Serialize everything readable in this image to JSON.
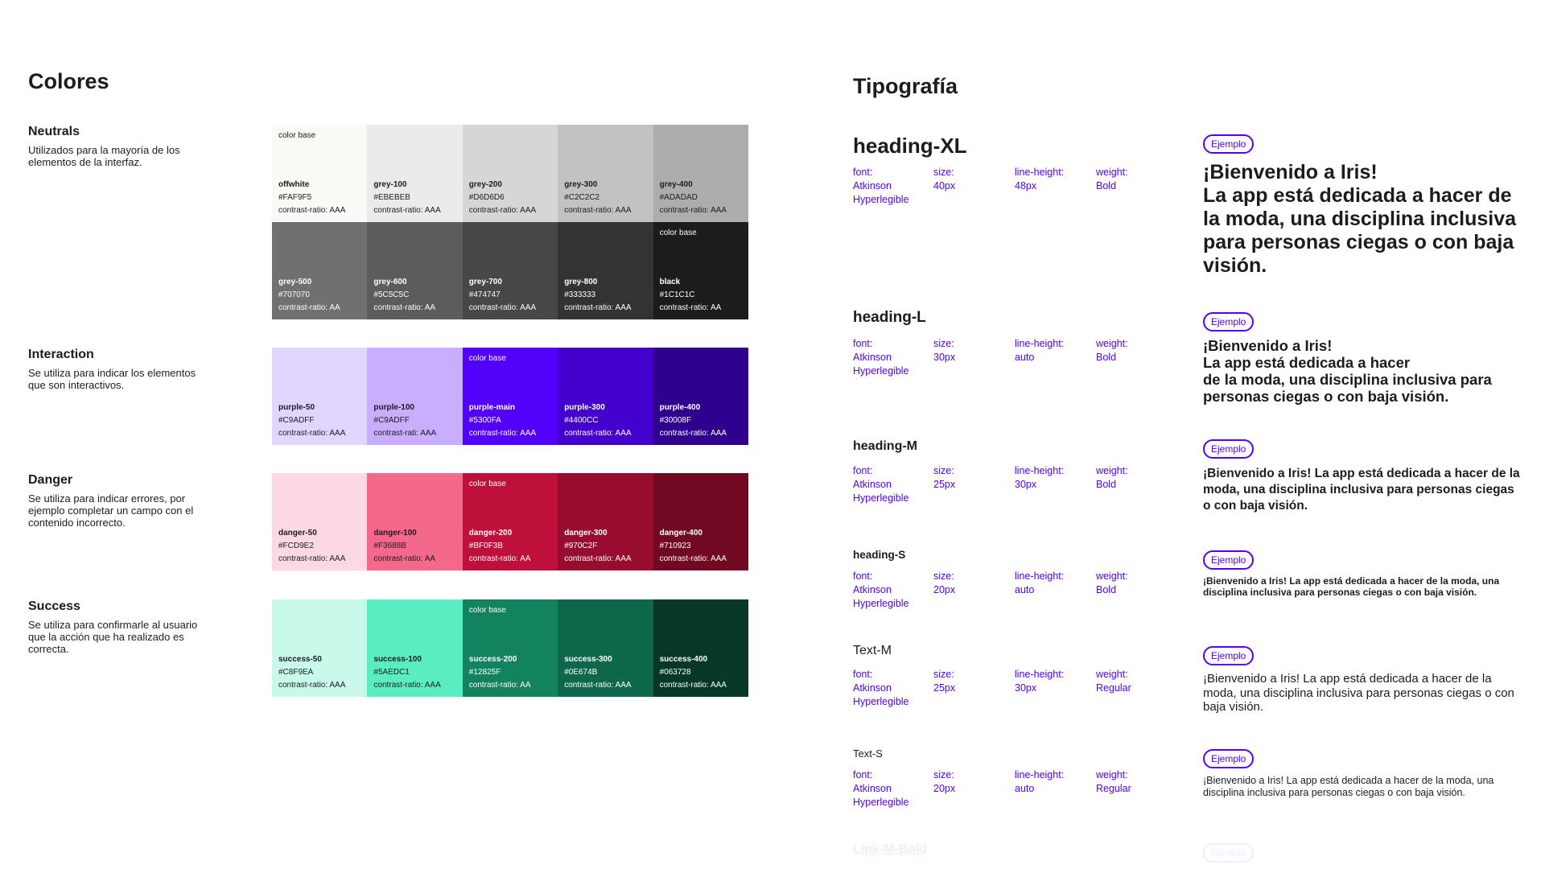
{
  "colors": {
    "title": "Colores",
    "sections": [
      {
        "title": "Neutrals",
        "desc": "Utilizados para la mayoría de los elementos de la interfaz.",
        "swatches": [
          {
            "name": "offwhite",
            "hex": "#FAF9F5",
            "contrast": "contrast-ratio: AAA",
            "base": "color base",
            "text": "#1c1c1c"
          },
          {
            "name": "grey-100",
            "hex": "#EBEBEB",
            "contrast": "contrast-ratio: AAA",
            "text": "#1c1c1c"
          },
          {
            "name": "grey-200",
            "hex": "#D6D6D6",
            "contrast": "contrast-ratio: AAA",
            "text": "#1c1c1c"
          },
          {
            "name": "grey-300",
            "hex": "#C2C2C2",
            "contrast": "contrast-ratio: AAA",
            "text": "#1c1c1c"
          },
          {
            "name": "grey-400",
            "hex": "#ADADAD",
            "contrast": "contrast-ratio: AAA",
            "text": "#1c1c1c"
          },
          {
            "name": "grey-500",
            "hex": "#707070",
            "contrast": "contrast-ratio: AA",
            "text": "#ffffff"
          },
          {
            "name": "grey-600",
            "hex": "#5C5C5C",
            "contrast": "contrast-ratio: AA",
            "text": "#ffffff"
          },
          {
            "name": "grey-700",
            "hex": "#474747",
            "contrast": "contrast-ratio: AAA",
            "text": "#ffffff"
          },
          {
            "name": "grey-800",
            "hex": "#333333",
            "contrast": "contrast-ratio: AAA",
            "text": "#ffffff"
          },
          {
            "name": "black",
            "hex": "#1C1C1C",
            "contrast": "contrast-ratio: AA",
            "base": "color base",
            "text": "#ffffff"
          }
        ]
      },
      {
        "title": "Interaction",
        "desc": "Se utiliza para indicar los elementos que son interactivos.",
        "swatches": [
          {
            "name": "purple-50",
            "hex": "#C9ADFF",
            "fill": "#E0D6FF",
            "contrast": "contrast-ratio: AAA",
            "text": "#1c1c1c"
          },
          {
            "name": "purple-100",
            "hex": "#C9ADFF",
            "contrast": "contrast-rati: AAA",
            "text": "#1c1c1c"
          },
          {
            "name": "purple-main",
            "hex": "#5300FA",
            "contrast": "contrast-ratio: AAA",
            "base": "color base",
            "text": "#ffffff"
          },
          {
            "name": "purple-300",
            "hex": "#4400CC",
            "contrast": "contrast-ratio: AAA",
            "text": "#ffffff"
          },
          {
            "name": "purple-400",
            "hex": "#30008F",
            "contrast": "contrast-ratio: AAA",
            "text": "#ffffff"
          }
        ]
      },
      {
        "title": "Danger",
        "desc": "Se utiliza para indicar errores, por ejemplo completar un campo con el contenido incorrecto.",
        "swatches": [
          {
            "name": "danger-50",
            "hex": "#FCD9E2",
            "contrast": "contrast-ratio: AAA",
            "text": "#1c1c1c"
          },
          {
            "name": "danger-100",
            "hex": "#F3688B",
            "contrast": "contrast-ratio: AA",
            "text": "#1c1c1c"
          },
          {
            "name": "danger-200",
            "hex": "#BF0F3B",
            "contrast": "contrast-ratio: AA",
            "base": "color base",
            "text": "#ffffff"
          },
          {
            "name": "danger-300",
            "hex": "#970C2F",
            "contrast": "contrast-ratio: AAA",
            "text": "#ffffff"
          },
          {
            "name": "danger-400",
            "hex": "#710923",
            "contrast": "contrast-ratio: AAA",
            "text": "#ffffff"
          }
        ]
      },
      {
        "title": "Success",
        "desc": "Se utiliza para confirmarle al usuario que la acción que ha realizado es correcta.",
        "swatches": [
          {
            "name": "success-50",
            "hex": "#C8F9EA",
            "contrast": "contrast-ratio: AAA",
            "text": "#1c1c1c"
          },
          {
            "name": "success-100",
            "hex": "#5AEDC1",
            "contrast": "contrast-ratio: AAA",
            "text": "#1c1c1c"
          },
          {
            "name": "success-200",
            "hex": "#12825F",
            "contrast": "contrast-ratio: AA",
            "base": "color base",
            "text": "#ffffff"
          },
          {
            "name": "success-300",
            "hex": "#0E674B",
            "contrast": "contrast-ratio: AAA",
            "text": "#ffffff"
          },
          {
            "name": "success-400",
            "hex": "#063728",
            "contrast": "contrast-ratio: AAA",
            "text": "#ffffff"
          }
        ]
      }
    ]
  },
  "typography": {
    "title": "Tipografía",
    "labels": {
      "font": "font:",
      "size": "size:",
      "line_height": "line-height:",
      "weight": "weight:",
      "badge": "Ejemplo"
    },
    "styles": [
      {
        "name": "heading-XL",
        "font": "Atkinson Hyperlegible",
        "size": "40px",
        "line_height": "48px",
        "weight": "Bold",
        "example": "¡Bienvenido a Iris!\nLa app está dedicada a hacer de la moda, una disciplina inclusiva para personas ciegas o con baja visión."
      },
      {
        "name": "heading-L",
        "font": "Atkinson Hyperlegible",
        "size": "30px",
        "line_height": "auto",
        "weight": "Bold",
        "example": "¡Bienvenido a Iris!\nLa app está dedicada a hacer\nde la moda, una disciplina inclusiva para personas ciegas o con baja visión."
      },
      {
        "name": "heading-M",
        "font": "Atkinson Hyperlegible",
        "size": "25px",
        "line_height": "30px",
        "weight": "Bold",
        "example": "¡Bienvenido a Iris! La app está dedicada a hacer de la moda, una disciplina inclusiva para personas ciegas o con baja visión."
      },
      {
        "name": "heading-S",
        "font": "Atkinson Hyperlegible",
        "size": "20px",
        "line_height": "auto",
        "weight": "Bold",
        "example": "¡Bienvenido a Iris! La app está dedicada a hacer de la moda, una disciplina inclusiva para personas ciegas o con baja visión."
      },
      {
        "name": "Text-M",
        "font": "Atkinson Hyperlegible",
        "size": "25px",
        "line_height": "30px",
        "weight": "Regular",
        "example": "¡Bienvenido a Iris! La app está dedicada a hacer de la moda, una disciplina inclusiva para personas ciegas o con baja visión."
      },
      {
        "name": "Text-S",
        "font": "Atkinson Hyperlegible",
        "size": "20px",
        "line_height": "auto",
        "weight": "Regular",
        "example": "¡Bienvenido a Iris! La app está dedicada a hacer de la moda, una disciplina inclusiva para personas ciegas o con baja visión."
      },
      {
        "name": "Link-M-Bold"
      }
    ]
  }
}
